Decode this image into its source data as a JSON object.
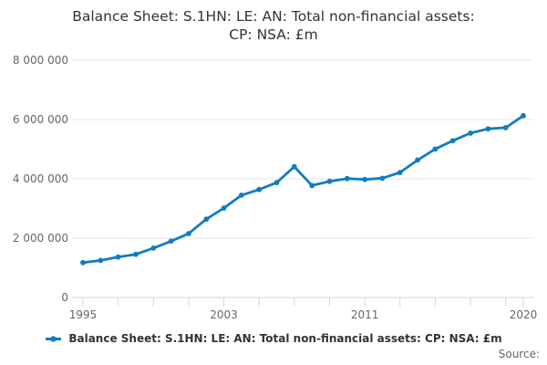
{
  "title": {
    "line1": "Balance Sheet: S.1HN: LE: AN: Total non-financial assets:",
    "line2": "CP: NSA: £m",
    "full": "Balance Sheet: S.1HN: LE: AN: Total non-financial assets: CP: NSA: £m"
  },
  "legend": {
    "label": "Balance Sheet: S.1HN: LE: AN: Total non-financial assets: CP: NSA: £m"
  },
  "footer": {
    "source": "Source:"
  },
  "colors": {
    "line": "#117cc2",
    "grid": "#e6e6e6",
    "axis": "#ccd6eb",
    "title_text": "#333333",
    "axis_label_text": "#666666"
  },
  "chart_data": {
    "type": "line",
    "title": "Balance Sheet: S.1HN: LE: AN: Total non-financial assets: CP: NSA: £m",
    "series_name": "Balance Sheet: S.1HN: LE: AN: Total non-financial assets: CP: NSA: £m",
    "xlabel": "",
    "ylabel": "",
    "x": [
      1995,
      1996,
      1997,
      1998,
      1999,
      2000,
      2001,
      2002,
      2003,
      2004,
      2005,
      2006,
      2007,
      2008,
      2009,
      2010,
      2011,
      2012,
      2013,
      2014,
      2015,
      2016,
      2017,
      2018,
      2019,
      2020
    ],
    "values": [
      1175000,
      1250000,
      1365000,
      1455000,
      1665000,
      1900000,
      2155000,
      2640000,
      3015000,
      3450000,
      3640000,
      3875000,
      4410000,
      3775000,
      3915000,
      4010000,
      3980000,
      4020000,
      4215000,
      4635000,
      5005000,
      5285000,
      5540000,
      5685000,
      5725000,
      6130000
    ],
    "ylim": [
      0,
      8000000
    ],
    "y_ticks": [
      0,
      2000000,
      4000000,
      6000000,
      8000000
    ],
    "y_tick_labels": [
      "0",
      "2 000 000",
      "4 000 000",
      "6 000 000",
      "8 000 000"
    ],
    "x_tick_years": [
      1995,
      1997,
      1999,
      2001,
      2003,
      2005,
      2007,
      2009,
      2011,
      2013,
      2015,
      2017,
      2019,
      2020
    ],
    "x_label_years": [
      1995,
      2003,
      2011,
      2020
    ],
    "grid": "horizontal gridlines only",
    "legend_position": "bottom-center",
    "marker": "small filled circles on each data point"
  }
}
